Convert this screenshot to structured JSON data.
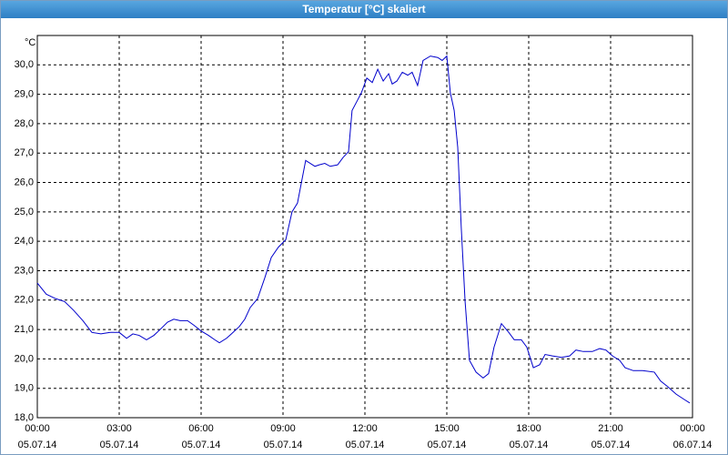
{
  "chart_data": {
    "type": "line",
    "title": "Temperatur [°C] skaliert",
    "ylabel": "°C",
    "color": "#0000cc",
    "grid": true,
    "xlim": [
      0,
      24
    ],
    "ylim": [
      18,
      31
    ],
    "xticks": [
      {
        "value": 0,
        "label": "00:00\n05.07.14"
      },
      {
        "value": 3,
        "label": "03:00\n05.07.14"
      },
      {
        "value": 6,
        "label": "06:00\n05.07.14"
      },
      {
        "value": 9,
        "label": "09:00\n05.07.14"
      },
      {
        "value": 12,
        "label": "12:00\n05.07.14"
      },
      {
        "value": 15,
        "label": "15:00\n05.07.14"
      },
      {
        "value": 18,
        "label": "18:00\n05.07.14"
      },
      {
        "value": 21,
        "label": "21:00\n05.07.14"
      },
      {
        "value": 24,
        "label": "00:00\n06.07.14"
      }
    ],
    "yticks": [
      {
        "value": 18,
        "label": "18,0"
      },
      {
        "value": 19,
        "label": "19,0"
      },
      {
        "value": 20,
        "label": "20,0"
      },
      {
        "value": 21,
        "label": "21,0"
      },
      {
        "value": 22,
        "label": "22,0"
      },
      {
        "value": 23,
        "label": "23,0"
      },
      {
        "value": 24,
        "label": "24,0"
      },
      {
        "value": 25,
        "label": "25,0"
      },
      {
        "value": 26,
        "label": "26,0"
      },
      {
        "value": 27,
        "label": "27,0"
      },
      {
        "value": 28,
        "label": "28,0"
      },
      {
        "value": 29,
        "label": "29,0"
      },
      {
        "value": 30,
        "label": "30,0"
      }
    ],
    "x": [
      0,
      0.33,
      0.67,
      1,
      1.33,
      1.67,
      2,
      2.33,
      2.67,
      3,
      3.27,
      3.5,
      3.73,
      4,
      4.27,
      4.5,
      4.77,
      5,
      5.23,
      5.5,
      5.73,
      6,
      6.27,
      6.5,
      6.67,
      6.93,
      7.17,
      7.4,
      7.6,
      7.8,
      8.07,
      8.33,
      8.57,
      8.83,
      9.1,
      9.33,
      9.53,
      9.83,
      10,
      10.17,
      10.33,
      10.53,
      10.73,
      11,
      11.2,
      11.4,
      11.53,
      11.73,
      11.87,
      12.07,
      12.27,
      12.47,
      12.67,
      12.87,
      13,
      13.17,
      13.37,
      13.57,
      13.73,
      13.93,
      14.13,
      14.4,
      14.67,
      14.83,
      15,
      15.13,
      15.27,
      15.4,
      15.53,
      15.67,
      15.83,
      16.07,
      16.33,
      16.53,
      16.73,
      17,
      17.27,
      17.47,
      17.73,
      17.93,
      18.17,
      18.4,
      18.6,
      18.87,
      19.2,
      19.5,
      19.73,
      20,
      20.33,
      20.6,
      20.83,
      21.07,
      21.33,
      21.53,
      21.83,
      22.17,
      22.6,
      22.83,
      23.1,
      23.4,
      23.73,
      23.9
    ],
    "values": [
      22.58,
      22.2,
      22.05,
      21.95,
      21.65,
      21.3,
      20.9,
      20.85,
      20.9,
      20.9,
      20.7,
      20.85,
      20.8,
      20.65,
      20.8,
      21.0,
      21.25,
      21.35,
      21.3,
      21.3,
      21.15,
      20.95,
      20.8,
      20.65,
      20.55,
      20.7,
      20.9,
      21.1,
      21.35,
      21.75,
      22.05,
      22.75,
      23.45,
      23.8,
      24.05,
      25.0,
      25.3,
      26.75,
      26.65,
      26.55,
      26.6,
      26.65,
      26.55,
      26.6,
      26.85,
      27.05,
      28.45,
      28.8,
      29.05,
      29.55,
      29.4,
      29.85,
      29.45,
      29.7,
      29.35,
      29.45,
      29.75,
      29.65,
      29.75,
      29.3,
      30.15,
      30.3,
      30.25,
      30.15,
      30.3,
      29.05,
      28.45,
      27.2,
      24.45,
      21.95,
      19.95,
      19.55,
      19.35,
      19.5,
      20.4,
      21.2,
      20.9,
      20.65,
      20.65,
      20.4,
      19.7,
      19.8,
      20.15,
      20.1,
      20.05,
      20.1,
      20.3,
      20.25,
      20.25,
      20.35,
      20.3,
      20.1,
      19.95,
      19.7,
      19.6,
      19.6,
      19.55,
      19.25,
      19.05,
      18.8,
      18.6,
      18.5
    ]
  }
}
